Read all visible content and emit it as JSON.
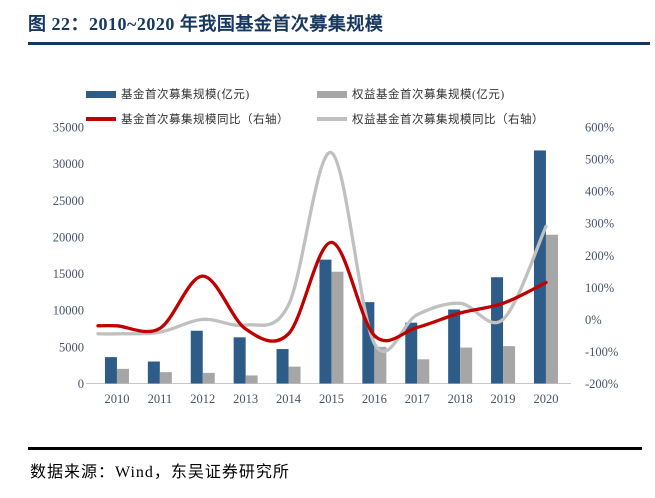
{
  "title": "图 22：2010~2020 年我国基金首次募集规模",
  "source": "数据来源：Wind，东吴证券研究所",
  "colors": {
    "title_navy": "#17375E",
    "bar_blue": "#2E5C88",
    "bar_gray": "#A6A6A6",
    "line_red": "#C00000",
    "line_gray": "#C0C0C0",
    "axis_label": "#44546A",
    "axis_line": "#C9C9C9",
    "rule_black": "#000000"
  },
  "legend": {
    "items": [
      {
        "label": "基金首次募集规模(亿元)",
        "type": "bar",
        "color": "#2E5C88",
        "col": 0,
        "row": 0
      },
      {
        "label": "权益基金首次募集规模(亿元)",
        "type": "bar",
        "color": "#A6A6A6",
        "col": 1,
        "row": 0
      },
      {
        "label": "基金首次募集规模同比（右轴）",
        "type": "line",
        "color": "#C00000",
        "col": 0,
        "row": 1
      },
      {
        "label": "权益基金首次募集规模同比（右轴）",
        "type": "line",
        "color": "#C0C0C0",
        "col": 1,
        "row": 1
      }
    ]
  },
  "chart_data": {
    "type": "combo-bar-line",
    "categories": [
      "2010",
      "2011",
      "2012",
      "2013",
      "2014",
      "2015",
      "2016",
      "2017",
      "2018",
      "2019",
      "2020"
    ],
    "series": [
      {
        "name": "基金首次募集规模(亿元)",
        "type": "bar",
        "axis": "left",
        "color": "#2E5C88",
        "values": [
          3600,
          3000,
          7200,
          6300,
          4700,
          16900,
          11100,
          8300,
          10100,
          14500,
          31800
        ]
      },
      {
        "name": "权益基金首次募集规模(亿元)",
        "type": "bar",
        "axis": "left",
        "color": "#A6A6A6",
        "values": [
          2000,
          1550,
          1450,
          1100,
          2300,
          15250,
          5000,
          3300,
          4900,
          5100,
          20300
        ]
      },
      {
        "name": "基金首次募集规模同比（右轴）",
        "type": "line",
        "axis": "right",
        "color": "#C00000",
        "values": [
          -20,
          -28,
          135,
          -30,
          -45,
          240,
          -50,
          -25,
          20,
          50,
          115
        ]
      },
      {
        "name": "权益基金首次募集规模同比（右轴）",
        "type": "line",
        "axis": "right",
        "color": "#C0C0C0",
        "values": [
          -45,
          -40,
          0,
          -18,
          45,
          520,
          -75,
          15,
          50,
          0,
          290
        ]
      }
    ],
    "left_axis": {
      "range": [
        0,
        35000
      ],
      "tick_values": [
        0,
        5000,
        10000,
        15000,
        20000,
        25000,
        30000,
        35000
      ],
      "tick_labels": [
        "0",
        "5000",
        "10000",
        "15000",
        "20000",
        "25000",
        "30000",
        "35000"
      ]
    },
    "right_axis": {
      "range": [
        -200,
        600
      ],
      "tick_values": [
        600,
        500,
        400,
        300,
        200,
        100,
        0,
        -100,
        -200
      ],
      "tick_labels": [
        "600%",
        "500%",
        "400%",
        "300%",
        "200%",
        "100%",
        "0%",
        "-100%",
        "-200%"
      ]
    },
    "grid": false,
    "legend_position": "top"
  }
}
